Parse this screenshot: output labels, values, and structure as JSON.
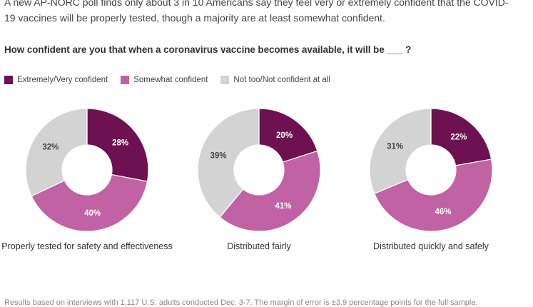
{
  "intro_text": "A new AP-NORC poll finds only about 3 in 10 Americans say they feel very or extremely confident that the COVID-19 vaccines will be properly tested, though a majority are at least somewhat confident.",
  "question": "How confident are you that when a coronavirus vaccine becomes available, it will be ___ ?",
  "legend": [
    {
      "label": "Extremely/Very confident",
      "color": "#6e1150"
    },
    {
      "label": "Somewhat confident",
      "color": "#c062a3"
    },
    {
      "label": "Not too/Not confident at all",
      "color": "#d3d3d3"
    }
  ],
  "chart_data": [
    {
      "type": "pie",
      "title": "Properly tested for safety and effectiveness",
      "categories": [
        "Extremely/Very confident",
        "Somewhat confident",
        "Not too/Not confident at all"
      ],
      "values": [
        28,
        40,
        32
      ],
      "labels": [
        "28%",
        "40%",
        "32%"
      ]
    },
    {
      "type": "pie",
      "title": "Distributed fairly",
      "categories": [
        "Extremely/Very confident",
        "Somewhat confident",
        "Not too/Not confident at all"
      ],
      "values": [
        20,
        41,
        39
      ],
      "labels": [
        "20%",
        "41%",
        "39%"
      ]
    },
    {
      "type": "pie",
      "title": "Distributed quickly and safely",
      "categories": [
        "Extremely/Very confident",
        "Somewhat confident",
        "Not too/Not confident at all"
      ],
      "values": [
        22,
        46,
        31
      ],
      "labels": [
        "22%",
        "46%",
        "31%"
      ]
    }
  ],
  "footnote": "Results based on interviews with 1,117 U.S. adults conducted Dec. 3-7. The margin of error is ±3.9 percentage points for the full sample."
}
